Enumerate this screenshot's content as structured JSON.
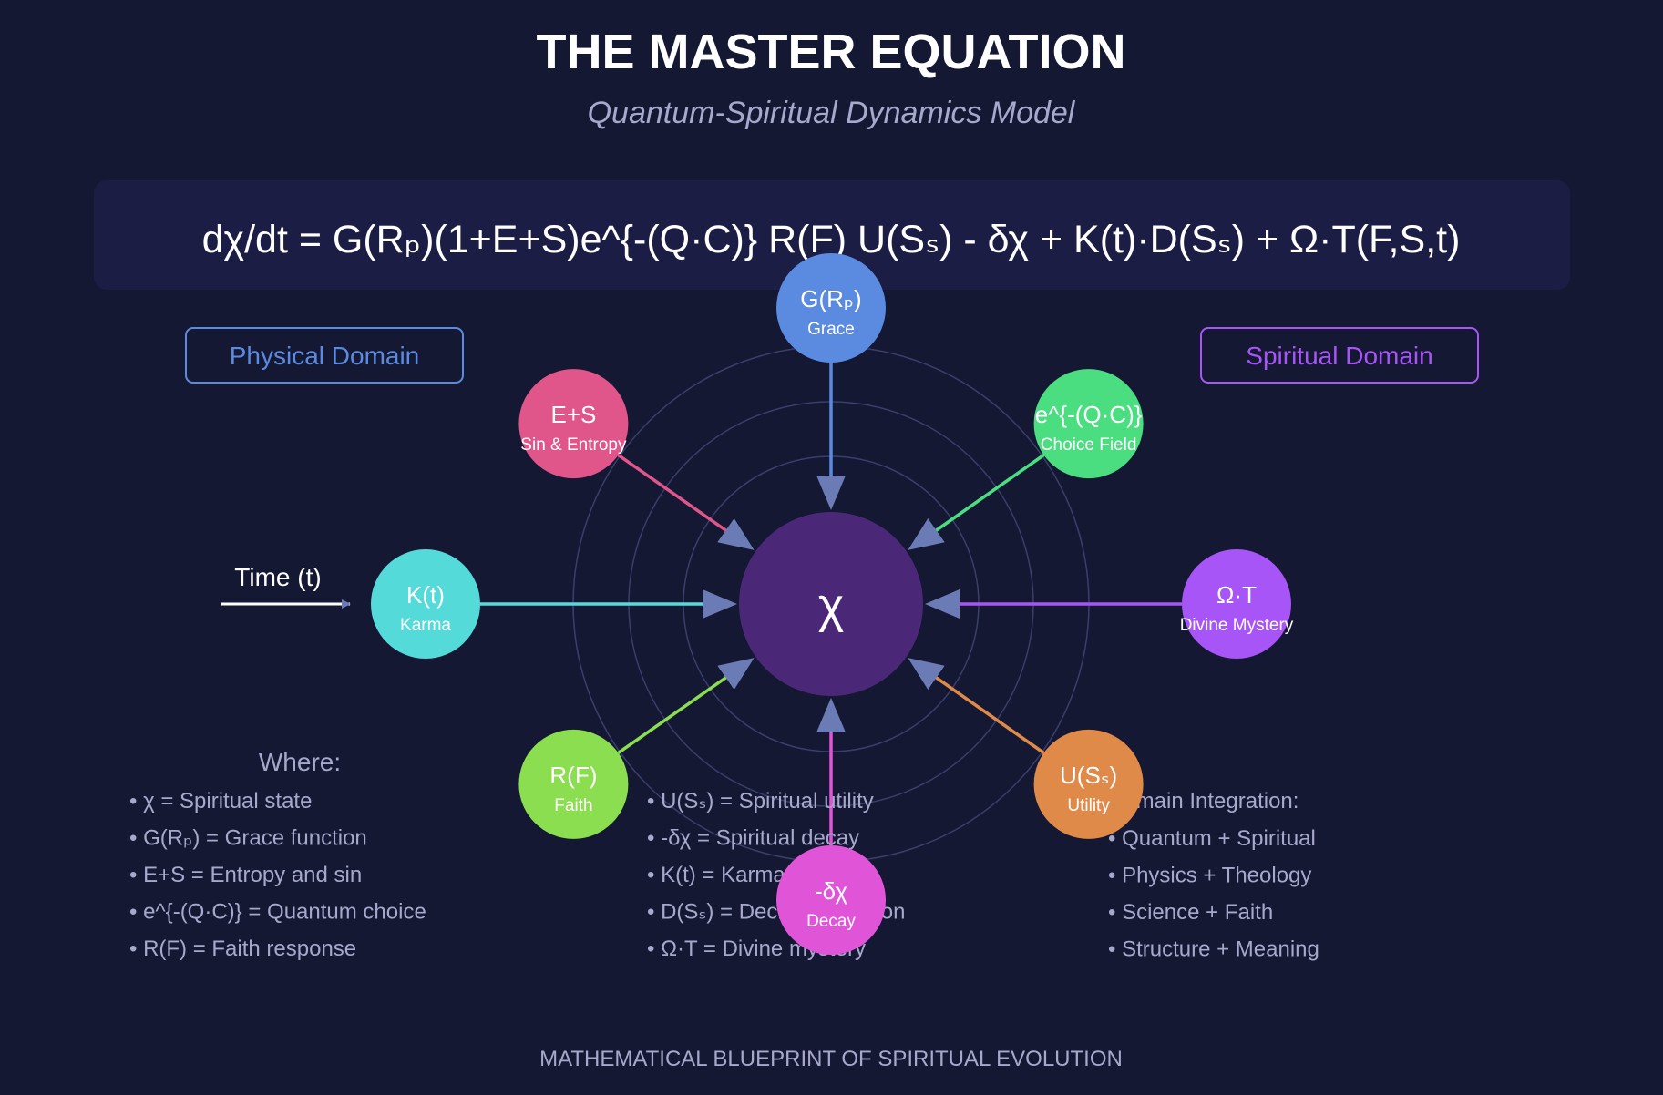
{
  "header": {
    "title": "THE MASTER EQUATION",
    "subtitle": "Quantum-Spiritual Dynamics Model"
  },
  "equation": "dχ/dt = G(Rₚ)(1+E+S)e^{-(Q·C)} R(F) U(Sₛ) - δχ + K(t)·D(Sₛ) + Ω·T(F,S,t)",
  "domains": {
    "physical": {
      "label": "Physical Domain",
      "color": "#5b8be0"
    },
    "spiritual": {
      "label": "Spiritual Domain",
      "color": "#a855f7"
    }
  },
  "time_label": "Time (t)",
  "center": {
    "symbol": "χ",
    "color": "#4a2877"
  },
  "nodes": [
    {
      "id": "grace",
      "symbol": "G(Rₚ)",
      "label": "Grace",
      "color": "#5b8be0"
    },
    {
      "id": "choice",
      "symbol": "e^{-(Q·C)}",
      "label": "Choice Field",
      "color": "#4ade80"
    },
    {
      "id": "divine",
      "symbol": "Ω·T",
      "label": "Divine Mystery",
      "color": "#a855f7"
    },
    {
      "id": "utility",
      "symbol": "U(Sₛ)",
      "label": "Utility",
      "color": "#e08a4a"
    },
    {
      "id": "decay",
      "symbol": "-δχ",
      "label": "Decay",
      "color": "#e055d8"
    },
    {
      "id": "faith",
      "symbol": "R(F)",
      "label": "Faith",
      "color": "#8ade50"
    },
    {
      "id": "karma",
      "symbol": "K(t)",
      "label": "Karma",
      "color": "#55dada"
    },
    {
      "id": "sin",
      "symbol": "E+S",
      "label": "Sin & Entropy",
      "color": "#e0558a"
    }
  ],
  "where": {
    "heading": "Where:",
    "left": [
      "• χ = Spiritual state",
      "• G(Rₚ) = Grace function",
      "• E+S = Entropy and sin",
      "• e^{-(Q·C)} = Quantum choice",
      "• R(F) = Faith response"
    ],
    "middle": [
      "• U(Sₛ) = Spiritual utility",
      "• -δχ = Spiritual decay",
      "• K(t) = Karma function",
      "• D(Sₛ) = Decision function",
      "• Ω·T = Divine mystery"
    ]
  },
  "integration": {
    "heading": "Domain Integration:",
    "items": [
      "• Quantum + Spiritual",
      "• Physics + Theology",
      "• Science + Faith",
      "• Structure + Meaning"
    ]
  },
  "footer": "MATHEMATICAL BLUEPRINT OF SPIRITUAL EVOLUTION"
}
